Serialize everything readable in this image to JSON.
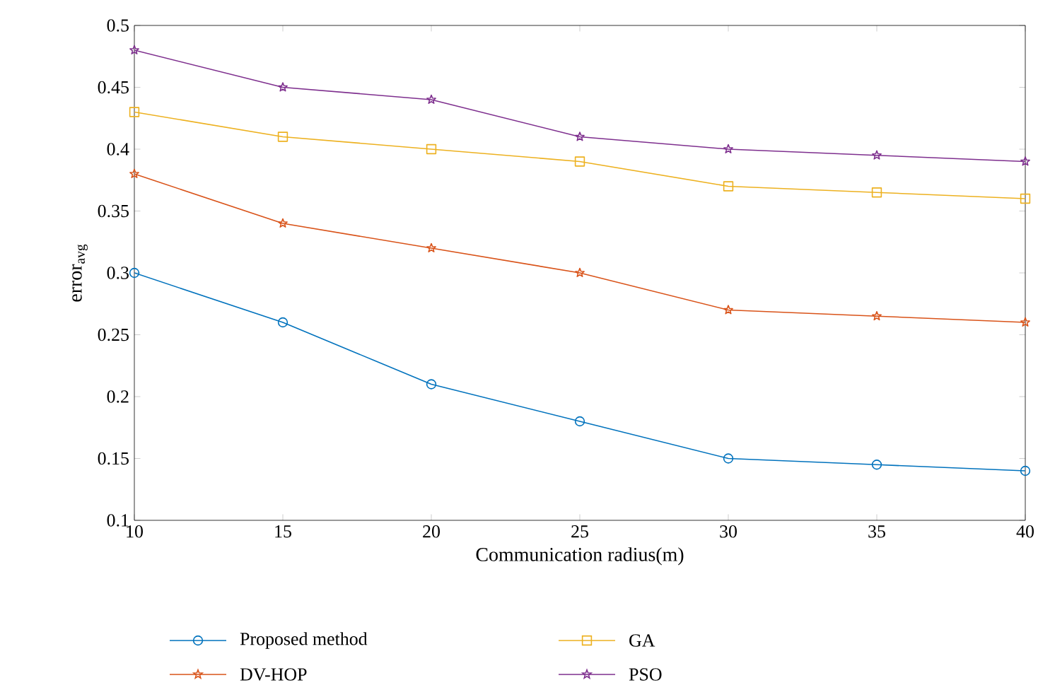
{
  "chart_data": {
    "type": "line",
    "xlabel": "Communication radius(m)",
    "ylabel": "error$_{avg}$",
    "x": [
      10,
      15,
      20,
      25,
      30,
      35,
      40
    ],
    "series": [
      {
        "name": "Proposed method",
        "color": "#0072bd",
        "marker": "circle",
        "values": [
          0.3,
          0.26,
          0.21,
          0.18,
          0.15,
          0.145,
          0.14
        ]
      },
      {
        "name": "DV-HOP",
        "color": "#d95319",
        "marker": "star",
        "values": [
          0.38,
          0.34,
          0.32,
          0.3,
          0.27,
          0.265,
          0.26
        ]
      },
      {
        "name": "GA",
        "color": "#edb120",
        "marker": "square",
        "values": [
          0.43,
          0.41,
          0.4,
          0.39,
          0.37,
          0.365,
          0.36
        ]
      },
      {
        "name": "PSO",
        "color": "#7e2f8e",
        "marker": "star",
        "values": [
          0.48,
          0.45,
          0.44,
          0.41,
          0.4,
          0.395,
          0.39
        ]
      }
    ],
    "xlim": [
      10,
      40
    ],
    "ylim": [
      0.1,
      0.5
    ],
    "xticks": [
      10,
      15,
      20,
      25,
      30,
      35,
      40
    ],
    "yticks": [
      0.1,
      0.15,
      0.2,
      0.25,
      0.3,
      0.35,
      0.4,
      0.45,
      0.5
    ],
    "grid": false,
    "legend": "bottom",
    "line_style": "solid"
  }
}
